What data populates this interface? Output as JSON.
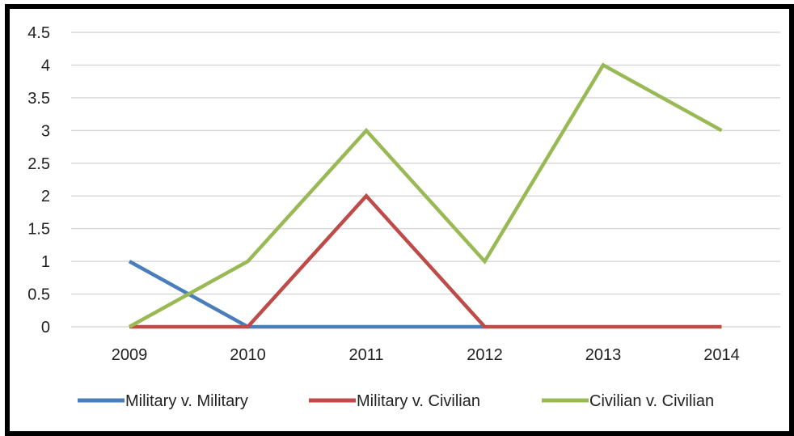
{
  "chart_data": {
    "type": "line",
    "categories": [
      "2009",
      "2010",
      "2011",
      "2012",
      "2013",
      "2014"
    ],
    "ylim": [
      0,
      4.5
    ],
    "yticks": [
      0,
      0.5,
      1,
      1.5,
      2,
      2.5,
      3,
      3.5,
      4,
      4.5
    ],
    "ytick_labels": [
      "0",
      "0.5",
      "1",
      "1.5",
      "2",
      "2.5",
      "3",
      "3.5",
      "4",
      "4.5"
    ],
    "grid": true,
    "legend_position": "bottom",
    "series": [
      {
        "name": "Military v. Military",
        "color": "#4a7ebb",
        "values": [
          1,
          0,
          0,
          0,
          null,
          null
        ]
      },
      {
        "name": "Military v. Civilian",
        "color": "#be4b48",
        "values": [
          0,
          0,
          2,
          0,
          0,
          0
        ]
      },
      {
        "name": "Civilian v. Civilian",
        "color": "#98b954",
        "values": [
          0,
          1,
          3,
          1,
          4,
          3
        ]
      }
    ],
    "title": "",
    "xlabel": "",
    "ylabel": ""
  }
}
